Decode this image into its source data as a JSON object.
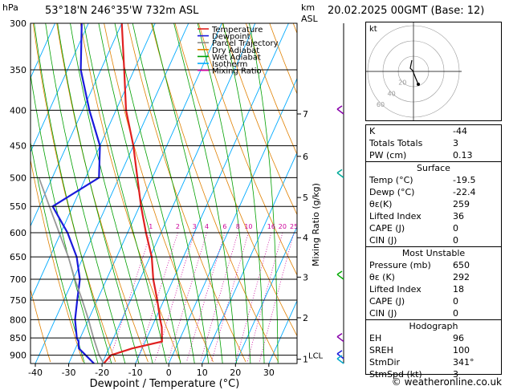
{
  "header": {
    "location": "53°18'N  246°35'W  732m  ASL",
    "datetime": "20.02.2025  00GMT  (Base: 12)",
    "hpa_unit": "hPa",
    "km_unit": "km",
    "asl_unit": "ASL"
  },
  "chart_data": {
    "type": "line",
    "title": "53°18'N  246°35'W  732m  ASL",
    "xlabel": "Dewpoint / Temperature (°C)",
    "ylabel_right": "Mixing Ratio (g/kg)",
    "xlim": [
      -40,
      38
    ],
    "pressure_levels": [
      300,
      350,
      400,
      450,
      500,
      550,
      600,
      650,
      700,
      750,
      800,
      850,
      900
    ],
    "temperature_ticks": [
      -40,
      -30,
      -20,
      -10,
      0,
      10,
      20,
      30
    ],
    "km_ticks": [
      {
        "km": 1,
        "p": 912
      },
      {
        "km": 2,
        "p": 795
      },
      {
        "km": 3,
        "p": 695
      },
      {
        "km": 4,
        "p": 610
      },
      {
        "km": 5,
        "p": 534
      },
      {
        "km": 6,
        "p": 466
      },
      {
        "km": 7,
        "p": 405
      }
    ],
    "lcl": {
      "label": "LCL",
      "p": 900
    },
    "mixing_ratio_labels": [
      "1",
      "2",
      "3",
      "4",
      "6",
      "8",
      "10",
      "16",
      "20",
      "25"
    ],
    "legend": [
      {
        "name": "Temperature",
        "color": "#e02020"
      },
      {
        "name": "Dewpoint",
        "color": "#1a1adb"
      },
      {
        "name": "Parcel Trajectory",
        "color": "#888888"
      },
      {
        "name": "Dry Adiabat",
        "color": "#e08000"
      },
      {
        "name": "Wet Adiabat",
        "color": "#00a000"
      },
      {
        "name": "Isotherm",
        "color": "#00aaff"
      },
      {
        "name": "Mixing Ratio",
        "color": "#cc0099"
      }
    ],
    "series": [
      {
        "name": "Temperature",
        "p": [
          925,
          900,
          880,
          860,
          850,
          820,
          800,
          750,
          700,
          650,
          600,
          550,
          500,
          450,
          400,
          350,
          300
        ],
        "t": [
          -19.5,
          -18.5,
          -13,
          -5,
          -5.5,
          -7,
          -8.5,
          -12,
          -16,
          -19.5,
          -24.5,
          -29.5,
          -34.5,
          -40,
          -47,
          -53,
          -60
        ]
      },
      {
        "name": "Dewpoint",
        "p": [
          925,
          900,
          880,
          860,
          850,
          800,
          750,
          700,
          650,
          600,
          550,
          500,
          450,
          400,
          350,
          300
        ],
        "t": [
          -22.4,
          -26,
          -29,
          -30,
          -31,
          -34,
          -36,
          -38,
          -42,
          -48,
          -56,
          -46,
          -50,
          -58,
          -66,
          -72
        ]
      },
      {
        "name": "Parcel Trajectory",
        "p": [
          925,
          900,
          850,
          800,
          750,
          700,
          650,
          600,
          550,
          500
        ],
        "t": [
          -19.5,
          -22,
          -26,
          -30,
          -34.5,
          -39.5,
          -44.5,
          -50.5,
          -57,
          -64
        ]
      }
    ]
  },
  "indices": {
    "k": {
      "label": "K",
      "value": "-44"
    },
    "tt": {
      "label": "Totals Totals",
      "value": "3"
    },
    "pw": {
      "label": "PW (cm)",
      "value": "0.13"
    }
  },
  "surface": {
    "title": "Surface",
    "rows": [
      {
        "label": "Temp (°C)",
        "value": "-19.5"
      },
      {
        "label": "Dewp (°C)",
        "value": "-22.4"
      },
      {
        "label": "θε(K)",
        "value": "259"
      },
      {
        "label": "Lifted Index",
        "value": "36"
      },
      {
        "label": "CAPE (J)",
        "value": "0"
      },
      {
        "label": "CIN (J)",
        "value": "0"
      }
    ]
  },
  "most_unstable": {
    "title": "Most Unstable",
    "rows": [
      {
        "label": "Pressure (mb)",
        "value": "650"
      },
      {
        "label": "θε (K)",
        "value": "292"
      },
      {
        "label": "Lifted Index",
        "value": "18"
      },
      {
        "label": "CAPE (J)",
        "value": "0"
      },
      {
        "label": "CIN (J)",
        "value": "0"
      }
    ]
  },
  "hodograph": {
    "title": "Hodograph",
    "kt_label": "kt",
    "ring_labels": [
      "20",
      "40",
      "60"
    ],
    "rows": [
      {
        "label": "EH",
        "value": "96"
      },
      {
        "label": "SREH",
        "value": "100"
      },
      {
        "label": "StmDir",
        "value": "341°"
      },
      {
        "label": "StmSpd (kt)",
        "value": "3"
      }
    ]
  },
  "footer": {
    "text": "© weatheronline.co.uk"
  }
}
